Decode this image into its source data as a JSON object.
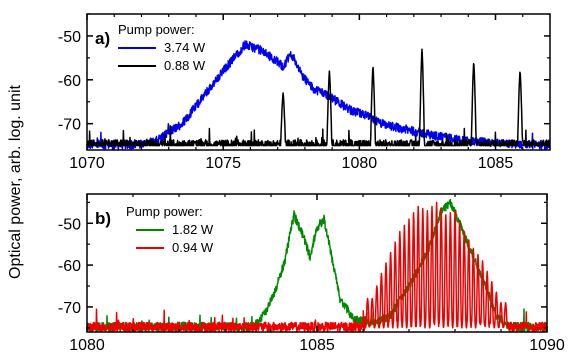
{
  "figure": {
    "ylabel": "Optical power, arb. log. unit"
  },
  "chart_data": [
    {
      "type": "line",
      "panel_label": "a)",
      "legend_title": "Pump power:",
      "legend_placement": "top-left",
      "xlim": [
        1070,
        1087
      ],
      "ylim": [
        -76,
        -45
      ],
      "xticks": [
        1070,
        1075,
        1080,
        1085
      ],
      "yticks": [
        -70,
        -60,
        -50
      ],
      "series": [
        {
          "name": "3.74 W",
          "color": "#0000ee",
          "kind": "broadband",
          "noise_floor": -75,
          "x": [
            1071.8,
            1072.5,
            1073.0,
            1073.5,
            1074.0,
            1074.5,
            1075.0,
            1075.4,
            1075.8,
            1076.3,
            1076.8,
            1077.2,
            1077.5,
            1077.9,
            1078.3,
            1078.7,
            1079.2,
            1079.7,
            1080.2,
            1080.8,
            1081.5,
            1082.2,
            1083.0,
            1084.0,
            1085.0,
            1086.0,
            1086.5
          ],
          "y": [
            -75,
            -74,
            -72,
            -70,
            -66,
            -62,
            -58,
            -55,
            -52,
            -53,
            -55,
            -57,
            -54,
            -59,
            -62,
            -63,
            -65,
            -67,
            -68,
            -70,
            -71,
            -72,
            -73,
            -74,
            -74.5,
            -75,
            -75
          ]
        },
        {
          "name": "0.88 W",
          "color": "#000000",
          "kind": "peaks",
          "noise_floor": -75,
          "x": [
            1077.2,
            1078.9,
            1080.5,
            1082.3,
            1084.2,
            1085.9
          ],
          "y": [
            -63,
            -58,
            -57,
            -53,
            -56,
            -58
          ]
        }
      ]
    },
    {
      "type": "line",
      "panel_label": "b)",
      "legend_title": "Pump power:",
      "legend_placement": "top-left",
      "xlim": [
        1080,
        1090
      ],
      "ylim": [
        -76,
        -43
      ],
      "xticks": [
        1080,
        1085,
        1090
      ],
      "yticks": [
        -70,
        -60,
        -50
      ],
      "series": [
        {
          "name": "1.82 W",
          "color": "#008800",
          "kind": "broadband",
          "noise_floor": -75,
          "x": [
            1083.6,
            1083.9,
            1084.1,
            1084.3,
            1084.5,
            1084.7,
            1084.85,
            1085.0,
            1085.15,
            1085.3,
            1085.5,
            1085.8,
            1086.2,
            1086.6,
            1087.0,
            1087.4,
            1087.7,
            1087.9,
            1088.1,
            1088.4,
            1088.7,
            1088.9,
            1089.2
          ],
          "y": [
            -75,
            -71,
            -66,
            -59,
            -48,
            -53,
            -58,
            -51,
            -49,
            -57,
            -68,
            -73,
            -74,
            -72,
            -65,
            -57,
            -47,
            -45,
            -50,
            -58,
            -66,
            -72,
            -75
          ]
        },
        {
          "name": "0.94 W",
          "color": "#ee0000",
          "kind": "comb",
          "noise_floor": -75,
          "x": [
            1086.2,
            1086.4,
            1086.6,
            1086.8,
            1087.0,
            1087.2,
            1087.4,
            1087.6,
            1087.8,
            1088.0,
            1088.2,
            1088.4,
            1088.6,
            1088.8,
            1089.0
          ],
          "y": [
            -68,
            -62,
            -57,
            -52,
            -49,
            -46,
            -47,
            -45,
            -48,
            -47,
            -52,
            -56,
            -59,
            -64,
            -69
          ]
        }
      ]
    }
  ]
}
